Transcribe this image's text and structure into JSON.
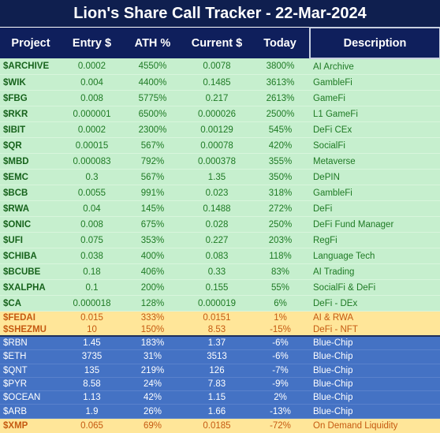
{
  "header": {
    "title": "Lion's Share Call Tracker - 22-Mar-2024"
  },
  "table": {
    "columns": [
      "Project",
      "Entry $",
      "ATH %",
      "Current $",
      "Today",
      "Description"
    ],
    "sections": [
      {
        "rows": [
          [
            "$ARCHIVE",
            "0.0002",
            "4550%",
            "0.0078",
            "3800%",
            "AI Archive"
          ],
          [
            "$WIK",
            "0.004",
            "4400%",
            "0.1485",
            "3613%",
            "GambleFi"
          ],
          [
            "$FBG",
            "0.008",
            "5775%",
            "0.217",
            "2613%",
            "GameFi"
          ],
          [
            "$RKR",
            "0.000001",
            "6500%",
            "0.000026",
            "2500%",
            "L1 GameFi"
          ],
          [
            "$IBIT",
            "0.0002",
            "2300%",
            "0.00129",
            "545%",
            "DeFi CEx"
          ],
          [
            "$QR",
            "0.00015",
            "567%",
            "0.00078",
            "420%",
            "SocialFi"
          ],
          [
            "$MBD",
            "0.000083",
            "792%",
            "0.000378",
            "355%",
            "Metaverse"
          ],
          [
            "$EMC",
            "0.3",
            "567%",
            "1.35",
            "350%",
            "DePIN"
          ],
          [
            "$BCB",
            "0.0055",
            "991%",
            "0.023",
            "318%",
            "GambleFi"
          ],
          [
            "$RWA",
            "0.04",
            "145%",
            "0.1488",
            "272%",
            "DeFi"
          ],
          [
            "$ONIC",
            "0.008",
            "675%",
            "0.028",
            "250%",
            "DeFi Fund Manager"
          ],
          [
            "$UFI",
            "0.075",
            "353%",
            "0.227",
            "203%",
            "RegFi"
          ],
          [
            "$CHIBA",
            "0.038",
            "400%",
            "0.083",
            "118%",
            "Language Tech"
          ],
          [
            "$BCUBE",
            "0.18",
            "406%",
            "0.33",
            "83%",
            "AI Trading"
          ],
          [
            "$XALPHA",
            "0.1",
            "200%",
            "0.155",
            "55%",
            "SocialFi & DeFi"
          ],
          [
            "$CA",
            "0.000018",
            "128%",
            "0.000019",
            "6%",
            "DeFi - DEx"
          ]
        ]
      },
      {
        "rows": [
          [
            "$FEDAI",
            "0.015",
            "333%",
            "0.0151",
            "1%",
            "AI & RWA"
          ],
          [
            "$SHEZMU",
            "10",
            "150%",
            "8.53",
            "-15%",
            "DeFi - NFT"
          ]
        ]
      },
      {
        "rows": [
          [
            "$RBN",
            "1.45",
            "183%",
            "1.37",
            "-6%",
            "Blue-Chip"
          ],
          [
            "$ETH",
            "3735",
            "31%",
            "3513",
            "-6%",
            "Blue-Chip"
          ],
          [
            "$QNT",
            "135",
            "219%",
            "126",
            "-7%",
            "Blue-Chip"
          ],
          [
            "$PYR",
            "8.58",
            "24%",
            "7.83",
            "-9%",
            "Blue-Chip"
          ],
          [
            "$OCEAN",
            "1.13",
            "42%",
            "1.15",
            "2%",
            "Blue-Chip"
          ],
          [
            "$ARB",
            "1.9",
            "26%",
            "1.66",
            "-13%",
            "Blue-Chip"
          ]
        ]
      },
      {
        "rows": [
          [
            "$XMP",
            "0.065",
            "69%",
            "0.0185",
            "-72%",
            "On Demand Liquidity"
          ]
        ]
      }
    ]
  }
}
